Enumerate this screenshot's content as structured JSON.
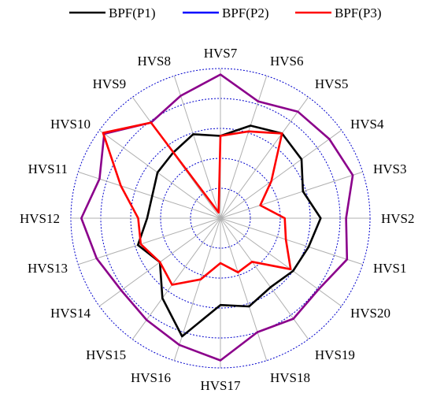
{
  "chart_data": {
    "type": "radar",
    "title": "",
    "categories": [
      "HVS1",
      "HVS2",
      "HVS3",
      "HVS4",
      "HVS5",
      "HVS6",
      "HVS7",
      "HVS8",
      "HVS9",
      "HVS10",
      "HVS11",
      "HVS12",
      "HVS13",
      "HVS14",
      "HVS15",
      "HVS16",
      "HVS17",
      "HVS18",
      "HVS19",
      "HVS20"
    ],
    "rlim": [
      0,
      1
    ],
    "rings": 5,
    "grid": true,
    "legend": "top",
    "series": [
      {
        "name": "BPF(P1)",
        "color": "#000000",
        "values": [
          0.62,
          0.67,
          0.58,
          0.67,
          0.7,
          0.65,
          0.55,
          0.59,
          0.54,
          0.52,
          0.48,
          0.49,
          0.58,
          0.5,
          0.66,
          0.83,
          0.58,
          0.62,
          0.57,
          0.6
        ]
      },
      {
        "name": "BPF(P2)",
        "color": "#0000ff",
        "values": [
          0.89,
          0.84,
          0.93,
          0.9,
          0.88,
          0.82,
          0.96,
          0.86,
          0.79,
          0.96,
          0.85,
          0.93,
          0.87,
          0.82,
          0.84,
          0.89,
          0.95,
          0.8,
          0.83,
          0.81
        ]
      },
      {
        "name": "BPF(P3)",
        "color": "#ff0000",
        "values": [
          0.46,
          0.43,
          0.28,
          0.42,
          0.7,
          0.61,
          0.55,
          0.04,
          0.79,
          0.97,
          0.7,
          0.55,
          0.56,
          0.5,
          0.55,
          0.43,
          0.3,
          0.38,
          0.36,
          0.58
        ]
      }
    ],
    "overlap_color": "#8b008b"
  }
}
